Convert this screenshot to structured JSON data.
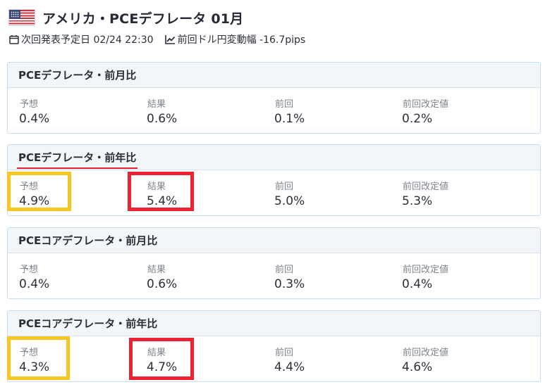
{
  "header": {
    "flag_icon": "us-flag-icon",
    "title": "アメリカ・PCEデフレータ 01月"
  },
  "meta": {
    "next_release_label": "次回発表予定日 02/24 22:30",
    "prev_usdjpy_label": "前回ドル円変動幅 -16.7pips"
  },
  "colors": {
    "highlight_forecast": "#f6c623",
    "highlight_result": "#ea2234",
    "title_underline": "#e02234"
  },
  "column_labels": [
    "予想",
    "結果",
    "前回",
    "前回改定値"
  ],
  "cards": [
    {
      "title": "PCEデフレータ・前月比",
      "values": [
        "0.4%",
        "0.6%",
        "0.1%",
        "0.2%"
      ]
    },
    {
      "title": "PCEデフレータ・前年比",
      "values": [
        "4.9%",
        "5.4%",
        "5.0%",
        "5.3%"
      ]
    },
    {
      "title": "PCEコアデフレータ・前月比",
      "values": [
        "0.4%",
        "0.6%",
        "0.3%",
        "0.4%"
      ]
    },
    {
      "title": "PCEコアデフレータ・前年比",
      "values": [
        "4.3%",
        "4.7%",
        "4.4%",
        "4.6%"
      ]
    }
  ]
}
